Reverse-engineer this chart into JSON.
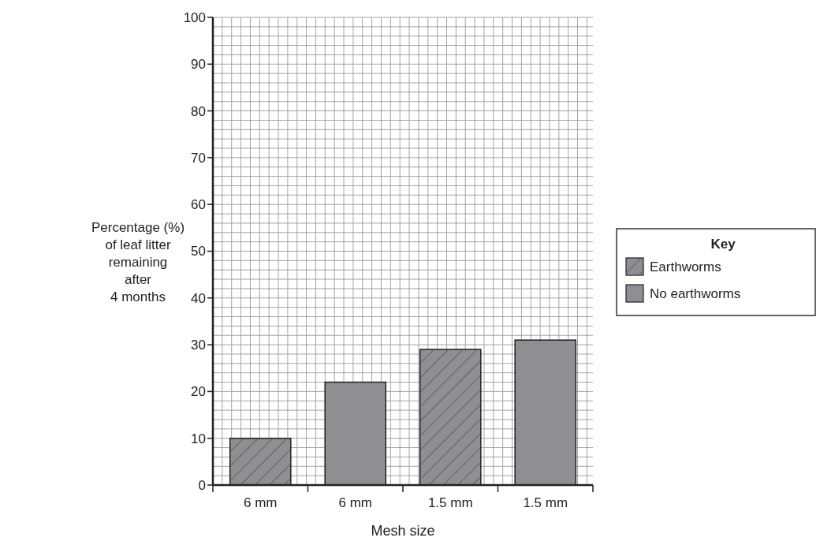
{
  "chart_data": {
    "type": "bar",
    "xlabel": "Mesh size",
    "ylabel": "Percentage (%)\nof leaf litter\nremaining\nafter\n4 months",
    "legend_title": "Key",
    "legend": "right",
    "grid": true,
    "categories": [
      "6 mm",
      "6 mm",
      "1.5 mm",
      "1.5 mm"
    ],
    "ylim": [
      0,
      100
    ],
    "yticks": [
      0,
      10,
      20,
      30,
      40,
      50,
      60,
      70,
      80,
      90,
      100
    ],
    "series": [
      {
        "name": "Earthworms",
        "color": "#8e8f93",
        "values": [
          10,
          null,
          29,
          null
        ]
      },
      {
        "name": "No earthworms",
        "color": "#8e8f93",
        "values": [
          null,
          22,
          null,
          31
        ]
      }
    ]
  }
}
